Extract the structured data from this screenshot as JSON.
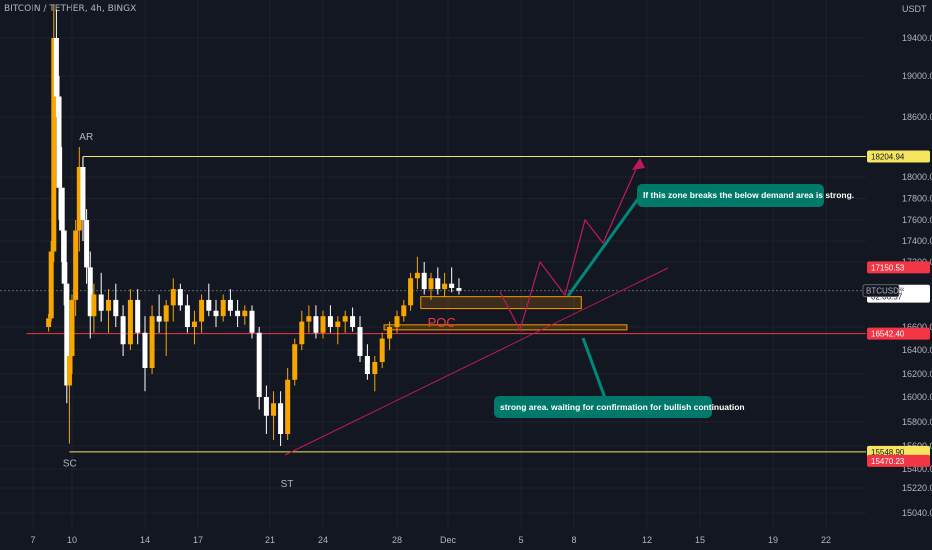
{
  "header": {
    "symbol_line": "BITCOIN / TETHER, 4h, BINGX"
  },
  "chart_data": {
    "type": "candlestick",
    "y_unit_label": "USDT",
    "ylim": [
      14980,
      19780
    ],
    "y_ticks": [
      19400,
      19000,
      18600,
      18000,
      17800,
      17600,
      17400,
      17200,
      16600,
      16400,
      16200,
      16000,
      15800,
      15600,
      15400,
      15220,
      15040
    ],
    "x_ticks": [
      {
        "label": "7",
        "day": 7
      },
      {
        "label": "10",
        "day": 10
      },
      {
        "label": "14",
        "day": 14
      },
      {
        "label": "17",
        "day": 17
      },
      {
        "label": "21",
        "day": 21
      },
      {
        "label": "24",
        "day": 24
      },
      {
        "label": "28",
        "day": 28
      },
      {
        "label": "Dec",
        "day": 31
      },
      {
        "label": "5",
        "day": 35
      },
      {
        "label": "8",
        "day": 38
      },
      {
        "label": "12",
        "day": 42
      },
      {
        "label": "15",
        "day": 45
      },
      {
        "label": "19",
        "day": 49
      },
      {
        "label": "22",
        "day": 52
      }
    ],
    "price_tags": [
      {
        "label": "18204.94",
        "value": 18204.94,
        "bg": "#f5e55f",
        "fg": "#131722"
      },
      {
        "label": "17150.53",
        "value": 17150.53,
        "bg": "#f23645",
        "fg": "#ffffff"
      },
      {
        "label": "16934.96",
        "value": 16934.96,
        "bg": "#ffffff",
        "fg": "#131722"
      },
      {
        "label": "02:06:57",
        "value": 16880,
        "bg": "#ffffff",
        "fg": "#131722"
      },
      {
        "label": "16542.40",
        "value": 16542.4,
        "bg": "#f23645",
        "fg": "#ffffff"
      },
      {
        "label": "15548.90",
        "value": 15548.9,
        "bg": "#f5e55f",
        "fg": "#131722"
      },
      {
        "label": "15470.23",
        "value": 15470.23,
        "bg": "#f23645",
        "fg": "#ffffff"
      }
    ],
    "symbol_tag": "BTCUSDT",
    "levels": [
      {
        "name": "AR",
        "value": 18204.94,
        "color": "#f5e55f",
        "from_day": 10.6
      },
      {
        "name": "SC",
        "value": 15548.9,
        "color": "#f5e55f",
        "from_day": 9.8
      },
      {
        "name": "red-level",
        "value": 16542.4,
        "color": "#f23645",
        "from_day": 6.5
      }
    ],
    "labels": [
      {
        "text": "AR",
        "day": 10.4,
        "value": 18370
      },
      {
        "text": "SC",
        "day": 9.3,
        "value": 15420
      },
      {
        "text": "ST",
        "day": 21.6,
        "value": 15230
      },
      {
        "text": "POC",
        "day": 29.8,
        "value": 16600
      }
    ],
    "zones": [
      {
        "from_day": 29.4,
        "to_day": 38.4,
        "low": 16770,
        "high": 16880
      },
      {
        "from_day": 27.3,
        "to_day": 40.9,
        "low": 16575,
        "high": 16620
      }
    ],
    "notes": [
      "If this zone breaks the below demand area is strong.",
      "strong area. waiting for confirmation for bullish continuation"
    ],
    "candles_ohlc_note": "approximate 4h candles read from the chart",
    "candles": [
      [
        8.2,
        16600,
        16720,
        16560,
        16680
      ],
      [
        8.4,
        16680,
        17400,
        16650,
        17300
      ],
      [
        8.6,
        17300,
        19750,
        17200,
        19400
      ],
      [
        8.8,
        19400,
        19700,
        18600,
        18800
      ],
      [
        9.0,
        18800,
        19000,
        17600,
        17900
      ],
      [
        9.2,
        17900,
        18300,
        17200,
        17500
      ],
      [
        9.4,
        17500,
        17900,
        16800,
        17000
      ],
      [
        9.6,
        17000,
        17200,
        15950,
        16100
      ],
      [
        9.8,
        16100,
        16400,
        15620,
        16350
      ],
      [
        10.0,
        16350,
        16900,
        16200,
        16850
      ],
      [
        10.2,
        16850,
        17600,
        16700,
        17500
      ],
      [
        10.4,
        17500,
        18300,
        17300,
        18100
      ],
      [
        10.6,
        18100,
        18200,
        17400,
        17600
      ],
      [
        10.8,
        17600,
        17700,
        17000,
        17150
      ],
      [
        11.0,
        17150,
        17300,
        16500,
        16700
      ],
      [
        11.2,
        16700,
        17000,
        16550,
        16900
      ],
      [
        11.6,
        16900,
        17100,
        16650,
        16750
      ],
      [
        12.0,
        16750,
        16950,
        16550,
        16850
      ],
      [
        12.4,
        16850,
        17000,
        16600,
        16700
      ],
      [
        12.8,
        16700,
        16800,
        16350,
        16450
      ],
      [
        13.2,
        16450,
        16950,
        16400,
        16850
      ],
      [
        13.6,
        16850,
        16950,
        16450,
        16550
      ],
      [
        14.0,
        16550,
        16700,
        16050,
        16250
      ],
      [
        14.4,
        16250,
        16800,
        16200,
        16700
      ],
      [
        14.8,
        16700,
        16900,
        16550,
        16650
      ],
      [
        15.2,
        16650,
        16850,
        16350,
        16800
      ],
      [
        15.6,
        16800,
        17050,
        16650,
        16950
      ],
      [
        16.0,
        16950,
        17000,
        16750,
        16800
      ],
      [
        16.4,
        16800,
        16900,
        16550,
        16600
      ],
      [
        16.8,
        16600,
        16750,
        16450,
        16650
      ],
      [
        17.2,
        16650,
        16900,
        16550,
        16850
      ],
      [
        17.6,
        16850,
        17000,
        16700,
        16750
      ],
      [
        18.0,
        16750,
        16850,
        16600,
        16700
      ],
      [
        18.4,
        16700,
        16900,
        16650,
        16850
      ],
      [
        18.8,
        16850,
        16950,
        16700,
        16750
      ],
      [
        19.2,
        16750,
        16850,
        16600,
        16700
      ],
      [
        19.6,
        16700,
        16800,
        16620,
        16750
      ],
      [
        20.0,
        16750,
        16800,
        16500,
        16550
      ],
      [
        20.4,
        16550,
        16600,
        15900,
        16000
      ],
      [
        20.8,
        16000,
        16100,
        15700,
        15850
      ],
      [
        21.2,
        15850,
        16050,
        15650,
        15950
      ],
      [
        21.6,
        15950,
        16050,
        15600,
        15700
      ],
      [
        22.0,
        15700,
        16250,
        15650,
        16150
      ],
      [
        22.4,
        16150,
        16500,
        16100,
        16450
      ],
      [
        22.8,
        16450,
        16750,
        16400,
        16650
      ],
      [
        23.2,
        16650,
        16800,
        16550,
        16700
      ],
      [
        23.6,
        16700,
        16800,
        16500,
        16550
      ],
      [
        24.0,
        16550,
        16750,
        16500,
        16700
      ],
      [
        24.4,
        16700,
        16800,
        16550,
        16600
      ],
      [
        24.8,
        16600,
        16700,
        16450,
        16650
      ],
      [
        25.2,
        16650,
        16750,
        16550,
        16700
      ],
      [
        25.6,
        16700,
        16780,
        16560,
        16600
      ],
      [
        26.0,
        16600,
        16700,
        16300,
        16350
      ],
      [
        26.4,
        16350,
        16450,
        16150,
        16200
      ],
      [
        26.8,
        16200,
        16350,
        16050,
        16300
      ],
      [
        27.2,
        16300,
        16550,
        16250,
        16500
      ],
      [
        27.6,
        16500,
        16650,
        16400,
        16600
      ],
      [
        28.0,
        16600,
        16750,
        16550,
        16700
      ],
      [
        28.4,
        16700,
        16850,
        16650,
        16800
      ],
      [
        28.8,
        16800,
        17100,
        16750,
        17050
      ],
      [
        29.2,
        17050,
        17250,
        16950,
        17100
      ],
      [
        29.6,
        17100,
        17200,
        16900,
        16950
      ],
      [
        30.0,
        16950,
        17100,
        16850,
        17050
      ],
      [
        30.4,
        17050,
        17150,
        16900,
        16950
      ],
      [
        30.8,
        16950,
        17100,
        16880,
        17000
      ],
      [
        31.2,
        17000,
        17150,
        16920,
        16960
      ],
      [
        31.6,
        16960,
        17050,
        16900,
        16935
      ]
    ]
  }
}
